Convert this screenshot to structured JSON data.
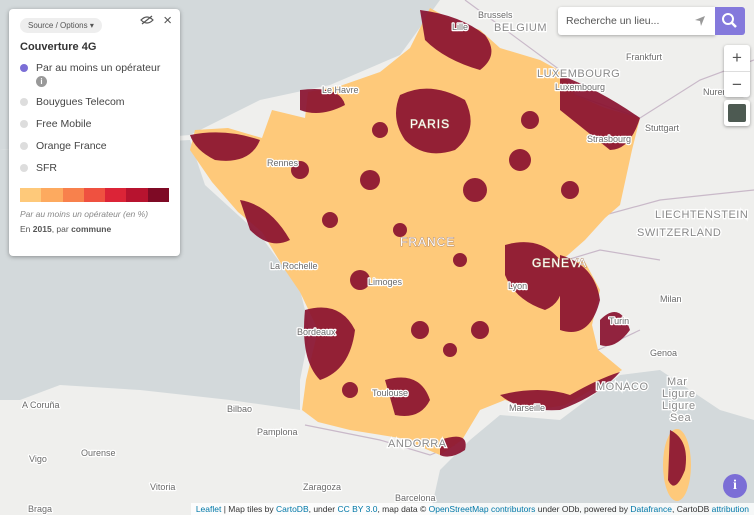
{
  "panel": {
    "source_button": "Source / Options",
    "close": "×",
    "title": "Couverture 4G",
    "options": [
      "Par au moins un opérateur",
      "Bouygues Telecom",
      "Free Mobile",
      "Orange France",
      "SFR"
    ],
    "info": "i",
    "legend_caption": "Par au moins un opérateur (en %)",
    "footnote": {
      "prefix": "En ",
      "year": "2015",
      "middle": ", par ",
      "unit": "commune"
    }
  },
  "search": {
    "placeholder": "Recherche un lieu..."
  },
  "zoom": {
    "in": "+",
    "out": "−"
  },
  "info_button": "i",
  "attribution": [
    "Leaflet",
    " | Map tiles by ",
    "CartoDB",
    ", under ",
    "CC BY 3.0",
    ", map data © ",
    "OpenStreetMap contributors",
    " under ODb, powered by ",
    "Datafrance",
    ", CartoDB ",
    "attribution"
  ],
  "places": [
    "Brussels",
    "BELGIUM",
    "Lille",
    "Frankfurt",
    "LUXEMBOURG",
    "Luxembourg",
    "Le Havre",
    "Nuremberg",
    "PARIS",
    "Strasbourg",
    "Stuttgart",
    "Rennes",
    "LIECHTENSTEIN",
    "FRANCE",
    "SWITZERLAND",
    "La Rochelle",
    "GENEVA",
    "Limoges",
    "Lyon",
    "Milan",
    "Turin",
    "Bordeaux",
    "Genoa",
    "MONACO",
    "Toulouse",
    "Mar",
    "Ligure",
    "Ligure",
    "Sea",
    "A Coruña",
    "Bilbao",
    "Marseille",
    "Pamplona",
    "ANDORRA",
    "Vigo",
    "Ourense",
    "Vitoria",
    "Zaragoza",
    "Barcelona",
    "Braga"
  ]
}
